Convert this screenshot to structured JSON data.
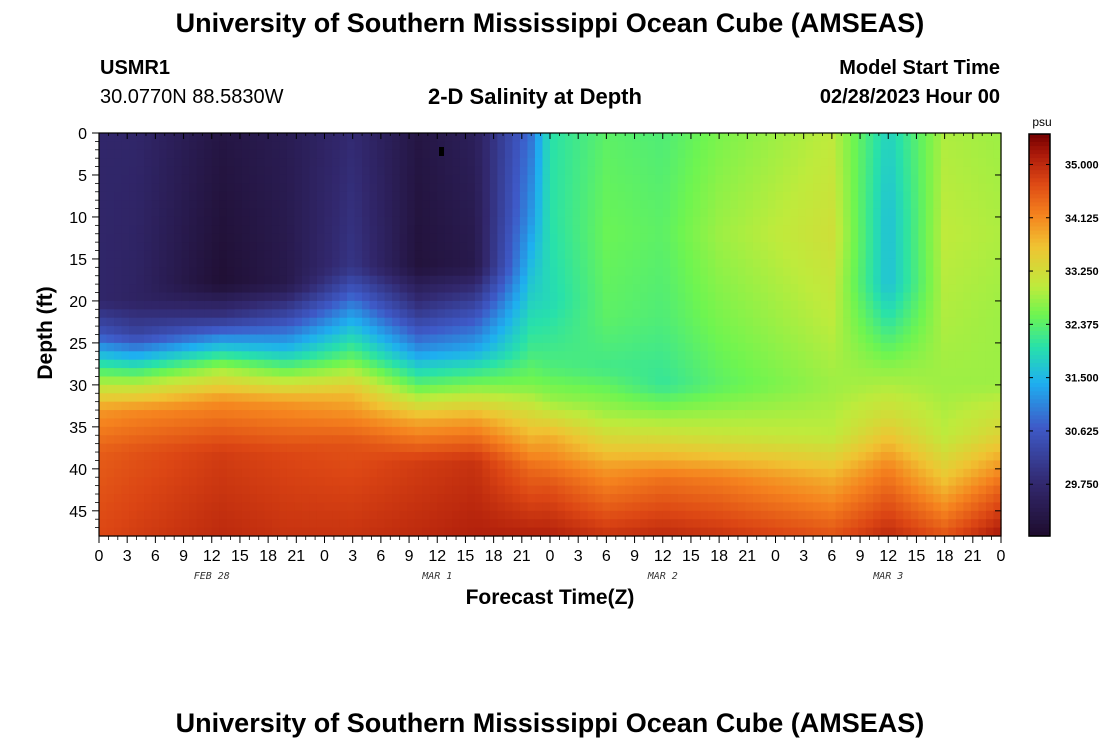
{
  "header": {
    "title": "University of Southern Mississippi Ocean Cube (AMSEAS)",
    "station_id": "USMR1",
    "coords": "30.0770N  88.5830W",
    "plot_title": "2-D Salinity at Depth",
    "model_start_label": "Model Start Time",
    "model_start_value": "02/28/2023 Hour 00"
  },
  "footer": {
    "title": "University of Southern Mississippi Ocean Cube (AMSEAS)"
  },
  "chart_data": {
    "type": "heatmap",
    "xlabel": "Forecast Time(Z)",
    "ylabel": "Depth (ft)",
    "x_tick_labels": [
      "0",
      "3",
      "6",
      "9",
      "12",
      "15",
      "18",
      "21",
      "0",
      "3",
      "6",
      "9",
      "12",
      "15",
      "18",
      "21",
      "0",
      "3",
      "6",
      "9",
      "12",
      "15",
      "18",
      "21",
      "0",
      "3",
      "6",
      "9",
      "12",
      "15",
      "18",
      "21",
      "0"
    ],
    "x_range_hours": [
      0,
      96
    ],
    "day_labels": [
      {
        "label": "FEB 28",
        "hour": 12
      },
      {
        "label": "MAR 1",
        "hour": 36
      },
      {
        "label": "MAR 2",
        "hour": 60
      },
      {
        "label": "MAR 3",
        "hour": 84
      }
    ],
    "y_ticks": [
      0,
      5,
      10,
      15,
      20,
      25,
      30,
      35,
      40,
      45
    ],
    "y_range_ft": [
      0,
      48
    ],
    "colorbar": {
      "unit": "psu",
      "range": [
        28.9,
        35.5
      ],
      "ticks": [
        "35.000",
        "34.125",
        "33.250",
        "32.375",
        "31.500",
        "30.625",
        "29.750"
      ]
    },
    "salinity_profiles": [
      {
        "hour": 0,
        "depth_ft": [
          0,
          20,
          24,
          27,
          30,
          33,
          38,
          48
        ],
        "psu": [
          29.7,
          29.7,
          30.6,
          31.8,
          33.0,
          34.0,
          34.5,
          34.7
        ]
      },
      {
        "hour": 4,
        "depth_ft": [
          0,
          20,
          24,
          27,
          30,
          33,
          38,
          48
        ],
        "psu": [
          29.7,
          29.6,
          30.3,
          31.6,
          33.0,
          34.1,
          34.6,
          34.8
        ]
      },
      {
        "hour": 13,
        "depth_ft": [
          0,
          18,
          22,
          25,
          28,
          32,
          38,
          48
        ],
        "psu": [
          29.2,
          29.0,
          30.0,
          31.4,
          32.8,
          34.1,
          34.8,
          35.0
        ]
      },
      {
        "hour": 20,
        "depth_ft": [
          0,
          18,
          22,
          26,
          29,
          32,
          38,
          48
        ],
        "psu": [
          29.4,
          29.3,
          30.4,
          31.6,
          32.8,
          34.0,
          34.7,
          34.9
        ]
      },
      {
        "hour": 27,
        "depth_ft": [
          0,
          16,
          20,
          24,
          27,
          31,
          37,
          48
        ],
        "psu": [
          29.8,
          30.0,
          30.9,
          31.8,
          32.5,
          33.7,
          34.6,
          34.9
        ]
      },
      {
        "hour": 34,
        "depth_ft": [
          0,
          16,
          21,
          26,
          30,
          34,
          39,
          48
        ],
        "psu": [
          29.2,
          29.1,
          30.0,
          31.2,
          32.4,
          33.8,
          34.8,
          35.0
        ]
      },
      {
        "hour": 40,
        "depth_ft": [
          0,
          16,
          21,
          26,
          30,
          34,
          39,
          48
        ],
        "psu": [
          29.5,
          29.3,
          30.4,
          31.4,
          32.6,
          33.9,
          34.9,
          35.1
        ]
      },
      {
        "hour": 46,
        "depth_ft": [
          0,
          10,
          20,
          26,
          30,
          34,
          40,
          48
        ],
        "psu": [
          30.9,
          31.2,
          31.8,
          32.2,
          32.6,
          33.4,
          34.4,
          35.1
        ]
      },
      {
        "hour": 48,
        "depth_ft": [
          0,
          10,
          20,
          28,
          32,
          36,
          42,
          48
        ],
        "psu": [
          32.0,
          32.0,
          31.9,
          32.3,
          32.8,
          33.8,
          34.6,
          35.1
        ]
      },
      {
        "hour": 54,
        "depth_ft": [
          0,
          12,
          22,
          28,
          34,
          40,
          48
        ],
        "psu": [
          32.4,
          32.5,
          32.4,
          32.2,
          32.9,
          34.0,
          34.9
        ]
      },
      {
        "hour": 60,
        "depth_ft": [
          0,
          12,
          22,
          30,
          36,
          41,
          48
        ],
        "psu": [
          32.3,
          32.4,
          32.3,
          32.1,
          33.2,
          34.3,
          35.0
        ]
      },
      {
        "hour": 66,
        "depth_ft": [
          0,
          12,
          22,
          30,
          36,
          41,
          48
        ],
        "psu": [
          32.6,
          32.8,
          32.6,
          32.4,
          33.1,
          34.2,
          34.9
        ]
      },
      {
        "hour": 78,
        "depth_ft": [
          0,
          12,
          22,
          30,
          36,
          41,
          48
        ],
        "psu": [
          33.0,
          33.2,
          33.0,
          32.8,
          33.0,
          33.8,
          34.6
        ]
      },
      {
        "hour": 84,
        "depth_ft": [
          0,
          10,
          18,
          22,
          28,
          34,
          40,
          48
        ],
        "psu": [
          31.8,
          31.6,
          31.6,
          32.0,
          32.7,
          33.3,
          34.2,
          35.0
        ]
      },
      {
        "hour": 90,
        "depth_ft": [
          0,
          12,
          22,
          30,
          36,
          41,
          48
        ],
        "psu": [
          32.9,
          33.0,
          32.9,
          32.8,
          33.0,
          33.6,
          34.6
        ]
      },
      {
        "hour": 96,
        "depth_ft": [
          0,
          12,
          22,
          30,
          36,
          42,
          48
        ],
        "psu": [
          32.8,
          32.9,
          32.8,
          32.8,
          33.4,
          34.4,
          35.2
        ]
      }
    ]
  }
}
